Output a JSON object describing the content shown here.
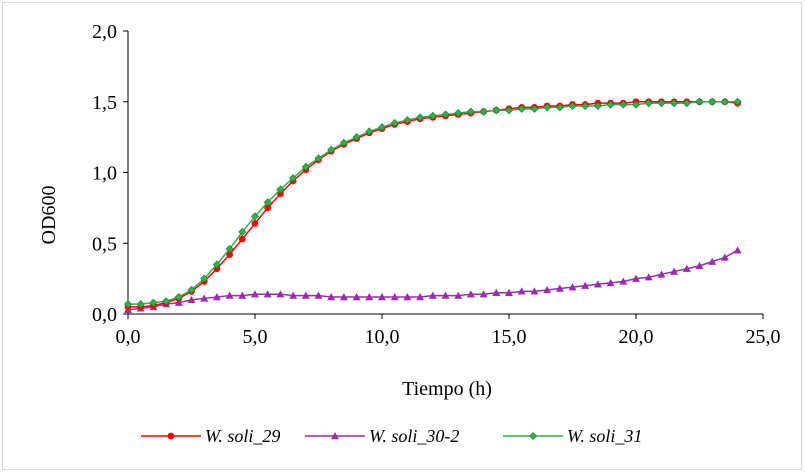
{
  "chart_data": {
    "type": "line",
    "title": "",
    "xlabel": "Tiempo (h)",
    "ylabel": "OD600",
    "xlim": [
      0,
      25
    ],
    "ylim": [
      0,
      2
    ],
    "x_ticks": [
      0,
      5,
      10,
      15,
      20,
      25
    ],
    "x_tick_labels": [
      "0,0",
      "5,0",
      "10,0",
      "15,0",
      "20,0",
      "25,0"
    ],
    "y_ticks": [
      0,
      0.5,
      1,
      1.5,
      2
    ],
    "y_tick_labels": [
      "0,0",
      "0,5",
      "1,0",
      "1,5",
      "2,0"
    ],
    "grid": false,
    "legend_position": "bottom",
    "x": [
      0,
      0.5,
      1,
      1.5,
      2,
      2.5,
      3,
      3.5,
      4,
      4.5,
      5,
      5.5,
      6,
      6.5,
      7,
      7.5,
      8,
      8.5,
      9,
      9.5,
      10,
      10.5,
      11,
      11.5,
      12,
      12.5,
      13,
      13.5,
      14,
      14.5,
      15,
      15.5,
      16,
      16.5,
      17,
      17.5,
      18,
      18.5,
      19,
      19.5,
      20,
      20.5,
      21,
      21.5,
      22,
      22.5,
      23,
      23.5,
      24
    ],
    "series": [
      {
        "name": "W. soli_29",
        "color": "#ff0000",
        "marker": "circle",
        "values": [
          0.05,
          0.05,
          0.06,
          0.08,
          0.11,
          0.16,
          0.23,
          0.32,
          0.42,
          0.53,
          0.64,
          0.75,
          0.85,
          0.94,
          1.02,
          1.09,
          1.15,
          1.2,
          1.24,
          1.28,
          1.31,
          1.34,
          1.36,
          1.38,
          1.39,
          1.4,
          1.41,
          1.42,
          1.43,
          1.44,
          1.45,
          1.46,
          1.46,
          1.47,
          1.47,
          1.48,
          1.48,
          1.49,
          1.49,
          1.49,
          1.5,
          1.5,
          1.5,
          1.5,
          1.5,
          1.5,
          1.5,
          1.5,
          1.49
        ]
      },
      {
        "name": "W. soli_30-2",
        "color": "#9a2cb0",
        "marker": "triangle",
        "values": [
          0.03,
          0.04,
          0.05,
          0.07,
          0.08,
          0.1,
          0.11,
          0.12,
          0.13,
          0.13,
          0.14,
          0.14,
          0.14,
          0.13,
          0.13,
          0.13,
          0.12,
          0.12,
          0.12,
          0.12,
          0.12,
          0.12,
          0.12,
          0.12,
          0.13,
          0.13,
          0.13,
          0.14,
          0.14,
          0.15,
          0.15,
          0.16,
          0.16,
          0.17,
          0.18,
          0.19,
          0.2,
          0.21,
          0.22,
          0.23,
          0.25,
          0.26,
          0.28,
          0.3,
          0.32,
          0.34,
          0.37,
          0.4,
          0.45
        ]
      },
      {
        "name": "W. soli_31",
        "color": "#2bb24c",
        "marker": "diamond",
        "values": [
          0.07,
          0.07,
          0.08,
          0.09,
          0.12,
          0.17,
          0.25,
          0.35,
          0.46,
          0.58,
          0.69,
          0.79,
          0.88,
          0.96,
          1.04,
          1.1,
          1.16,
          1.21,
          1.25,
          1.29,
          1.32,
          1.35,
          1.37,
          1.39,
          1.4,
          1.41,
          1.42,
          1.43,
          1.43,
          1.44,
          1.44,
          1.45,
          1.45,
          1.46,
          1.46,
          1.47,
          1.47,
          1.47,
          1.48,
          1.48,
          1.48,
          1.49,
          1.49,
          1.49,
          1.49,
          1.5,
          1.5,
          1.5,
          1.5
        ]
      }
    ]
  }
}
